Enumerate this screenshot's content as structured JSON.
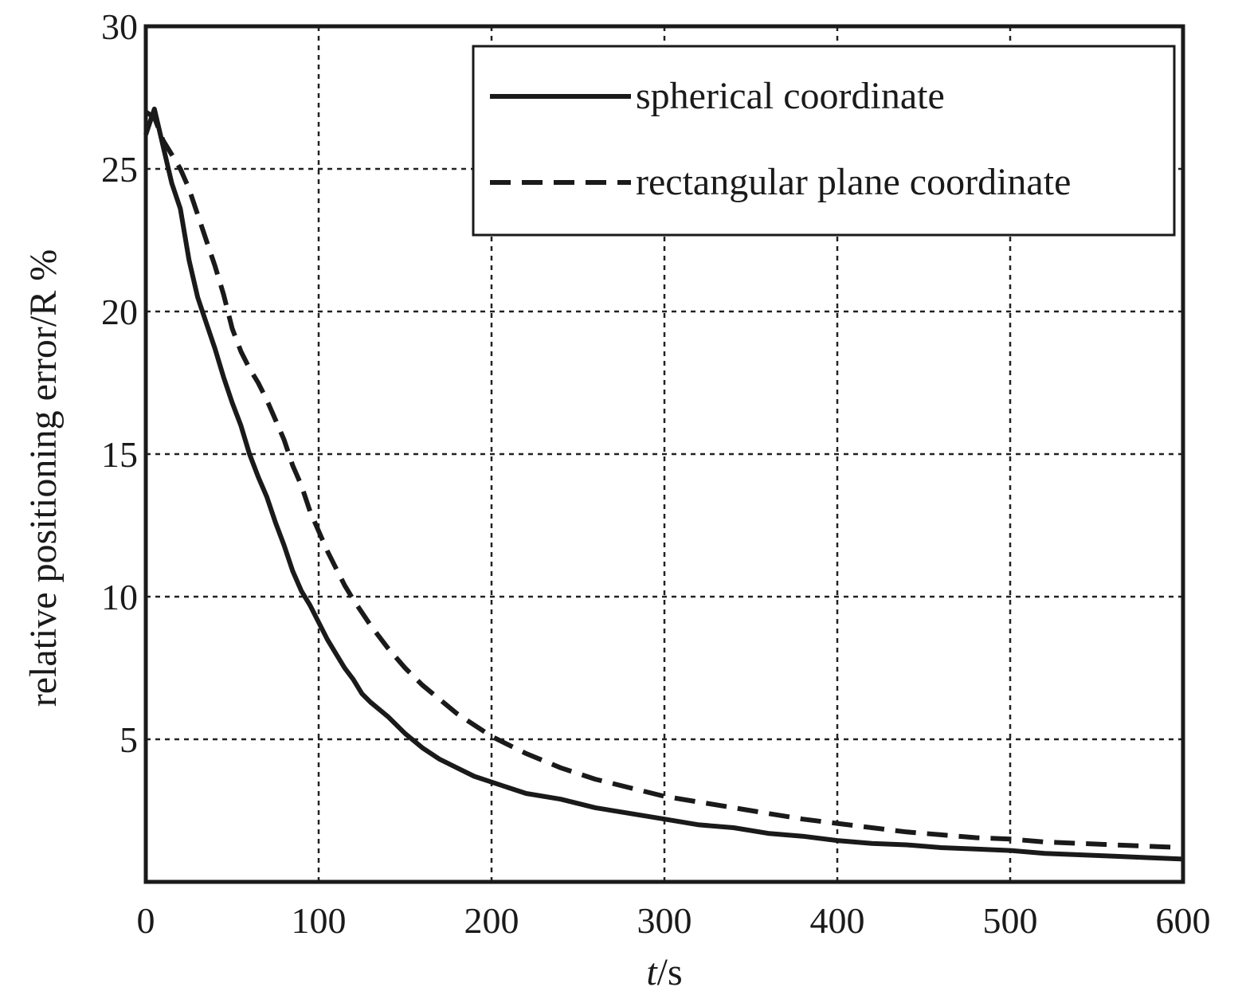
{
  "chart_data": {
    "type": "line",
    "title": "",
    "xlabel_italic": "t",
    "xlabel_rest": "/s",
    "ylabel": "relative positioning error/R %",
    "xlim": [
      0,
      600
    ],
    "ylim": [
      0,
      30
    ],
    "xticks": [
      0,
      100,
      200,
      300,
      400,
      500,
      600
    ],
    "yticks": [
      5,
      10,
      15,
      20,
      25,
      30
    ],
    "y_zero_label_shown": false,
    "grid": true,
    "legend_position": "top-right",
    "series": [
      {
        "name": "spherical coordinate",
        "line_style": "solid",
        "color": "#1a1a1a",
        "points": [
          [
            0,
            26.2
          ],
          [
            5,
            27.1
          ],
          [
            10,
            25.8
          ],
          [
            15,
            24.5
          ],
          [
            20,
            23.6
          ],
          [
            25,
            21.8
          ],
          [
            30,
            20.5
          ],
          [
            35,
            19.6
          ],
          [
            40,
            18.7
          ],
          [
            45,
            17.7
          ],
          [
            50,
            16.8
          ],
          [
            55,
            16.0
          ],
          [
            60,
            15.0
          ],
          [
            65,
            14.2
          ],
          [
            70,
            13.5
          ],
          [
            75,
            12.6
          ],
          [
            80,
            11.8
          ],
          [
            85,
            10.9
          ],
          [
            90,
            10.2
          ],
          [
            95,
            9.7
          ],
          [
            100,
            9.1
          ],
          [
            105,
            8.5
          ],
          [
            110,
            8.0
          ],
          [
            115,
            7.5
          ],
          [
            120,
            7.1
          ],
          [
            125,
            6.6
          ],
          [
            130,
            6.3
          ],
          [
            140,
            5.8
          ],
          [
            150,
            5.2
          ],
          [
            160,
            4.7
          ],
          [
            170,
            4.3
          ],
          [
            180,
            4.0
          ],
          [
            190,
            3.7
          ],
          [
            200,
            3.5
          ],
          [
            210,
            3.3
          ],
          [
            220,
            3.1
          ],
          [
            240,
            2.9
          ],
          [
            260,
            2.6
          ],
          [
            280,
            2.4
          ],
          [
            300,
            2.2
          ],
          [
            320,
            2.0
          ],
          [
            340,
            1.9
          ],
          [
            360,
            1.7
          ],
          [
            380,
            1.6
          ],
          [
            400,
            1.45
          ],
          [
            420,
            1.35
          ],
          [
            440,
            1.3
          ],
          [
            460,
            1.2
          ],
          [
            480,
            1.15
          ],
          [
            500,
            1.1
          ],
          [
            520,
            1.0
          ],
          [
            540,
            0.95
          ],
          [
            560,
            0.9
          ],
          [
            580,
            0.85
          ],
          [
            600,
            0.8
          ]
        ]
      },
      {
        "name": "rectangular plane coordinate",
        "line_style": "dashed",
        "color": "#1a1a1a",
        "points": [
          [
            0,
            27.0
          ],
          [
            5,
            26.8
          ],
          [
            10,
            26.0
          ],
          [
            15,
            25.5
          ],
          [
            20,
            25.0
          ],
          [
            25,
            24.3
          ],
          [
            30,
            23.4
          ],
          [
            35,
            22.5
          ],
          [
            40,
            21.6
          ],
          [
            45,
            20.6
          ],
          [
            50,
            19.4
          ],
          [
            55,
            18.6
          ],
          [
            60,
            18.0
          ],
          [
            65,
            17.5
          ],
          [
            70,
            16.9
          ],
          [
            75,
            16.2
          ],
          [
            80,
            15.5
          ],
          [
            85,
            14.6
          ],
          [
            90,
            13.9
          ],
          [
            95,
            13.0
          ],
          [
            100,
            12.3
          ],
          [
            105,
            11.6
          ],
          [
            110,
            11.0
          ],
          [
            115,
            10.4
          ],
          [
            120,
            9.9
          ],
          [
            130,
            9.0
          ],
          [
            140,
            8.2
          ],
          [
            150,
            7.5
          ],
          [
            160,
            6.9
          ],
          [
            170,
            6.4
          ],
          [
            180,
            5.9
          ],
          [
            190,
            5.5
          ],
          [
            200,
            5.1
          ],
          [
            210,
            4.8
          ],
          [
            220,
            4.5
          ],
          [
            240,
            4.0
          ],
          [
            260,
            3.6
          ],
          [
            280,
            3.3
          ],
          [
            300,
            3.0
          ],
          [
            320,
            2.8
          ],
          [
            340,
            2.6
          ],
          [
            360,
            2.4
          ],
          [
            380,
            2.2
          ],
          [
            400,
            2.05
          ],
          [
            420,
            1.9
          ],
          [
            440,
            1.75
          ],
          [
            460,
            1.65
          ],
          [
            480,
            1.55
          ],
          [
            500,
            1.5
          ],
          [
            520,
            1.4
          ],
          [
            540,
            1.35
          ],
          [
            560,
            1.3
          ],
          [
            580,
            1.25
          ],
          [
            600,
            1.2
          ]
        ]
      }
    ]
  }
}
